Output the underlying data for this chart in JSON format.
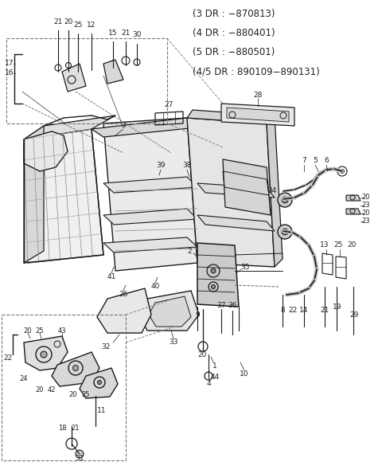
{
  "bg_color": "#ffffff",
  "line_color": "#1a1a1a",
  "text_color": "#222222",
  "title_lines": [
    "(3 DR : −870813)",
    "(4 DR : −880401)",
    "(5 DR : −880501)",
    "(4/5 DR : 890109−890131)"
  ],
  "figsize": [
    4.8,
    5.85
  ],
  "dpi": 100
}
